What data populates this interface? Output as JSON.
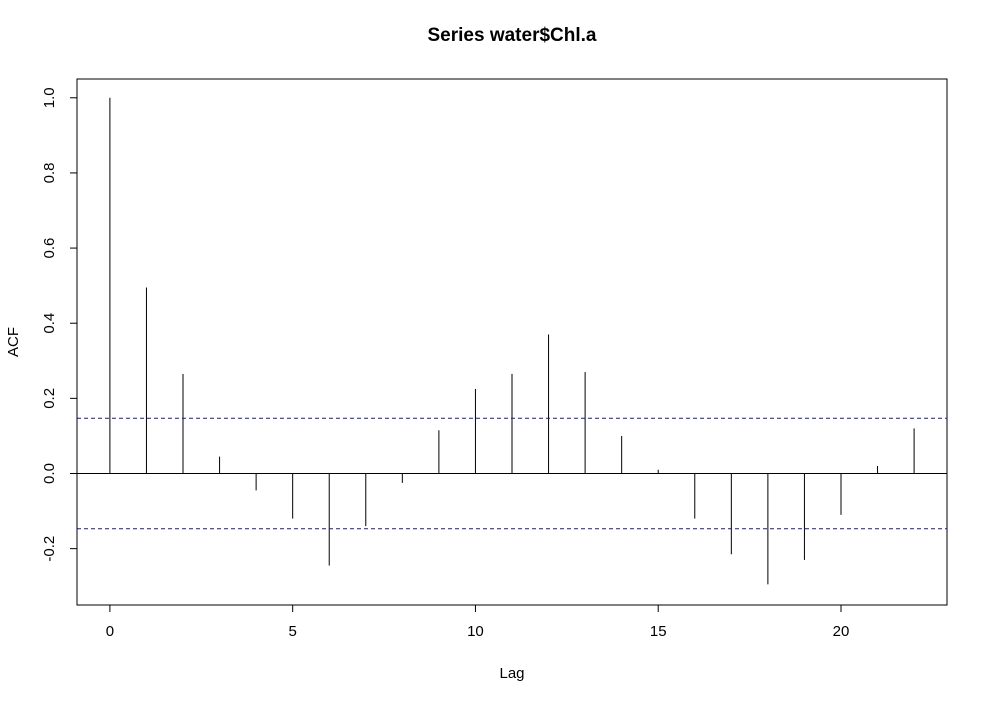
{
  "chart_data": {
    "type": "bar",
    "title": "Series  water$Chl.a",
    "xlabel": "Lag",
    "ylabel": "ACF",
    "xlim": [
      -0.9,
      22.9
    ],
    "ylim": [
      -0.35,
      1.05
    ],
    "x_ticks": [
      0,
      5,
      10,
      15,
      20
    ],
    "x_tick_labels": [
      "0",
      "5",
      "10",
      "15",
      "20"
    ],
    "y_ticks": [
      -0.2,
      0.0,
      0.2,
      0.4,
      0.6,
      0.8,
      1.0
    ],
    "y_tick_labels": [
      "-0.2",
      "0.0",
      "0.2",
      "0.4",
      "0.6",
      "0.8",
      "1.0"
    ],
    "lags": [
      0,
      1,
      2,
      3,
      4,
      5,
      6,
      7,
      8,
      9,
      10,
      11,
      12,
      13,
      14,
      15,
      16,
      17,
      18,
      19,
      20,
      21,
      22
    ],
    "acf": [
      1.0,
      0.495,
      0.265,
      0.045,
      -0.045,
      -0.12,
      -0.245,
      -0.14,
      -0.025,
      0.115,
      0.225,
      0.265,
      0.37,
      0.27,
      0.1,
      0.01,
      -0.12,
      -0.215,
      -0.295,
      -0.23,
      -0.11,
      0.02,
      0.12
    ],
    "confidence_bound": 0.147,
    "zero_line": 0,
    "grid": false,
    "colors": {
      "spikes": "#000000",
      "confidence_lines": "#1a1a8c",
      "frame": "#000000"
    }
  }
}
